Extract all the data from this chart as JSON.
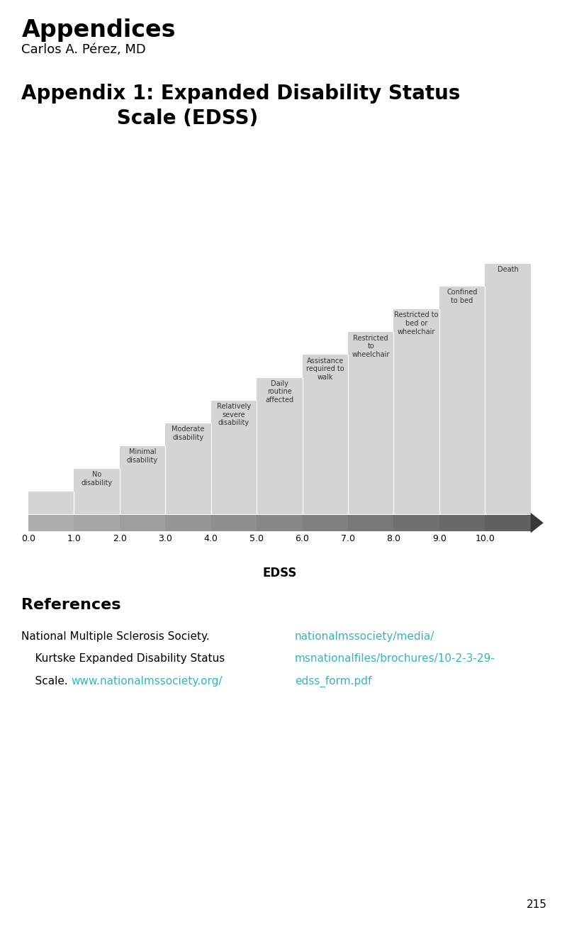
{
  "title_main": "Appendices",
  "title_author": "Carlos A. Pérez, MD",
  "background_color": "#ffffff",
  "chart_bg_color": "#e0e0e0",
  "step_fill_color": "#d4d4d4",
  "edss_values": [
    0.0,
    1.0,
    2.0,
    3.0,
    4.0,
    5.0,
    6.0,
    7.0,
    8.0,
    9.0,
    10.0
  ],
  "step_labels": [
    "",
    "No\ndisability",
    "Minimal\ndisability",
    "Moderate\ndisability",
    "Relatively\nsevere\ndisability",
    "Daily\nroutine\naffected",
    "Assistance\nrequired to\nwalk",
    "Restricted\nto\nwheelchair",
    "Restricted to\nbed or\nwheelchair",
    "Confined\nto bed",
    "Death"
  ],
  "step_heights": [
    1.0,
    2.0,
    3.0,
    4.0,
    5.0,
    6.0,
    7.0,
    8.0,
    9.0,
    10.0,
    11.0
  ],
  "xlabel": "EDSS",
  "ref_title": "References",
  "ref_line1": "National Multiple Sclerosis Society.",
  "ref_line2": "    Kurtske Expanded Disability Status",
  "ref_line3": "    Scale.",
  "ref_url1": "www.nationalmssociety.org/",
  "ref_url2": "nationalmssociety/media/",
  "ref_url3": "msnationalfiles/brochures/10-2-3-29-",
  "ref_url4": "edss_form.pdf",
  "url_color": "#3ab5b5",
  "page_number": "215",
  "arrow_dark": "#555555",
  "arrow_light": "#999999"
}
